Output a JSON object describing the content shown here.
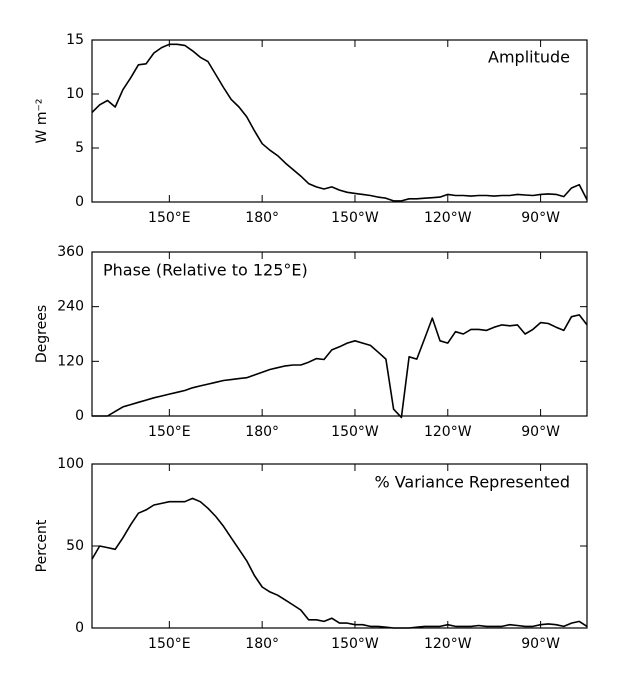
{
  "chart_data": [
    {
      "type": "line",
      "title": "Amplitude",
      "ylabel": "W m⁻²",
      "color": "#000000",
      "x": [
        125,
        127.5,
        130,
        132.5,
        135,
        137.5,
        140,
        142.5,
        145,
        147.5,
        150,
        152.5,
        155,
        157.5,
        160,
        162.5,
        165,
        167.5,
        170,
        172.5,
        175,
        177.5,
        180,
        182.5,
        185,
        187.5,
        190,
        192.5,
        195,
        197.5,
        200,
        202.5,
        205,
        207.5,
        210,
        212.5,
        215,
        217.5,
        220,
        222.5,
        225,
        227.5,
        230,
        232.5,
        235,
        237.5,
        240,
        242.5,
        245,
        247.5,
        250,
        252.5,
        255,
        257.5,
        260,
        262.5,
        265,
        267.5,
        270,
        272.5,
        275,
        277.5,
        280,
        282.5,
        285
      ],
      "values": [
        8.3,
        9.0,
        9.4,
        8.8,
        10.4,
        11.5,
        12.7,
        12.8,
        13.8,
        14.3,
        14.6,
        14.6,
        14.5,
        14.0,
        13.4,
        13.0,
        11.8,
        10.6,
        9.5,
        8.8,
        7.9,
        6.6,
        5.4,
        4.8,
        4.3,
        3.6,
        3.0,
        2.4,
        1.7,
        1.4,
        1.2,
        1.4,
        1.1,
        0.9,
        0.8,
        0.7,
        0.6,
        0.45,
        0.35,
        0.1,
        0.1,
        0.3,
        0.3,
        0.35,
        0.4,
        0.45,
        0.7,
        0.6,
        0.6,
        0.55,
        0.6,
        0.6,
        0.55,
        0.6,
        0.6,
        0.7,
        0.65,
        0.6,
        0.7,
        0.75,
        0.7,
        0.5,
        1.3,
        1.6,
        0.2
      ],
      "xlim": [
        125,
        285
      ],
      "ylim": [
        0,
        15
      ],
      "yticks": [
        0,
        5,
        10,
        15
      ],
      "xticks": [
        {
          "value": 150,
          "label": "150°E"
        },
        {
          "value": 180,
          "label": "180°"
        },
        {
          "value": 210,
          "label": "150°W"
        },
        {
          "value": 240,
          "label": "120°W"
        },
        {
          "value": 270,
          "label": "90°W"
        }
      ]
    },
    {
      "type": "line",
      "title": "Phase (Relative to 125°E)",
      "ylabel": "Degrees",
      "color": "#000000",
      "x": [
        125,
        127.5,
        130,
        132.5,
        135,
        137.5,
        140,
        142.5,
        145,
        147.5,
        150,
        152.5,
        155,
        157.5,
        160,
        162.5,
        165,
        167.5,
        170,
        172.5,
        175,
        177.5,
        180,
        182.5,
        185,
        187.5,
        190,
        192.5,
        195,
        197.5,
        200,
        202.5,
        205,
        207.5,
        210,
        212.5,
        215,
        217.5,
        220,
        222.5,
        225,
        227.5,
        230,
        232.5,
        235,
        237.5,
        240,
        242.5,
        245,
        247.5,
        250,
        252.5,
        255,
        257.5,
        260,
        262.5,
        265,
        267.5,
        270,
        272.5,
        275,
        277.5,
        280,
        282.5,
        285
      ],
      "values": [
        0,
        0,
        0,
        10,
        20,
        25,
        30,
        35,
        40,
        44,
        48,
        52,
        56,
        62,
        66,
        70,
        74,
        78,
        80,
        82,
        84,
        90,
        96,
        102,
        106,
        110,
        112,
        112,
        118,
        126,
        124,
        145,
        152,
        160,
        165,
        160,
        155,
        140,
        125,
        15,
        -3,
        130,
        125,
        170,
        215,
        165,
        160,
        185,
        180,
        190,
        190,
        188,
        195,
        200,
        198,
        200,
        180,
        190,
        205,
        203,
        195,
        188,
        218,
        222,
        200
      ],
      "xlim": [
        125,
        285
      ],
      "ylim": [
        0,
        360
      ],
      "yticks": [
        0,
        120,
        240,
        360
      ],
      "xticks": [
        {
          "value": 150,
          "label": "150°E"
        },
        {
          "value": 180,
          "label": "180°"
        },
        {
          "value": 210,
          "label": "150°W"
        },
        {
          "value": 240,
          "label": "120°W"
        },
        {
          "value": 270,
          "label": "90°W"
        }
      ]
    },
    {
      "type": "line",
      "title": "% Variance Represented",
      "ylabel": "Percent",
      "color": "#000000",
      "x": [
        125,
        127.5,
        130,
        132.5,
        135,
        137.5,
        140,
        142.5,
        145,
        147.5,
        150,
        152.5,
        155,
        157.5,
        160,
        162.5,
        165,
        167.5,
        170,
        172.5,
        175,
        177.5,
        180,
        182.5,
        185,
        187.5,
        190,
        192.5,
        195,
        197.5,
        200,
        202.5,
        205,
        207.5,
        210,
        212.5,
        215,
        217.5,
        220,
        222.5,
        225,
        227.5,
        230,
        232.5,
        235,
        237.5,
        240,
        242.5,
        245,
        247.5,
        250,
        252.5,
        255,
        257.5,
        260,
        262.5,
        265,
        267.5,
        270,
        272.5,
        275,
        277.5,
        280,
        282.5,
        285
      ],
      "values": [
        42,
        50,
        49,
        48,
        55,
        63,
        70,
        72,
        75,
        76,
        77,
        77,
        77,
        79,
        77,
        73,
        68,
        62,
        55,
        48,
        41,
        32,
        25,
        22,
        20,
        17,
        14,
        11,
        5,
        5,
        4,
        6,
        3,
        3,
        2,
        2,
        1,
        1,
        0.5,
        0,
        0,
        0,
        0.5,
        1,
        1,
        1,
        2,
        1,
        1,
        1,
        1.5,
        1,
        1,
        1,
        2,
        1.5,
        1,
        1,
        2,
        2.5,
        2,
        1,
        3,
        4,
        1
      ],
      "xlim": [
        125,
        285
      ],
      "ylim": [
        0,
        100
      ],
      "yticks": [
        0,
        50,
        100
      ],
      "xticks": [
        {
          "value": 150,
          "label": "150°E"
        },
        {
          "value": 180,
          "label": "180°"
        },
        {
          "value": 210,
          "label": "150°W"
        },
        {
          "value": 240,
          "label": "120°W"
        },
        {
          "value": 270,
          "label": "90°W"
        }
      ]
    }
  ]
}
